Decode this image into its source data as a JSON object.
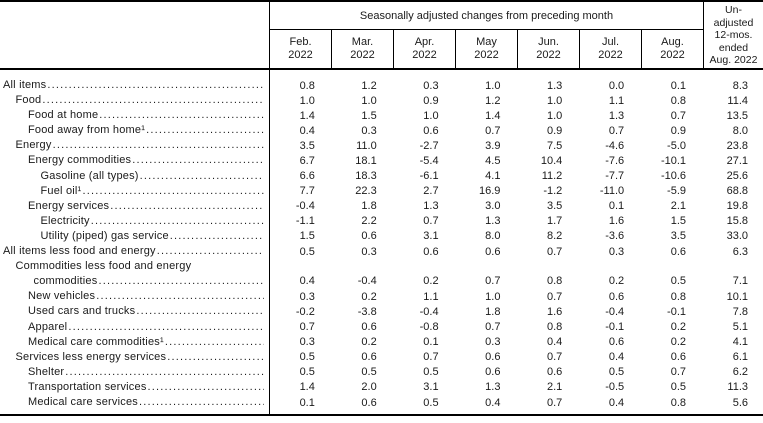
{
  "table": {
    "group_header": "Seasonally adjusted changes from preceding month",
    "unadjusted_header": "Un-\nadjusted\n12-mos.\nended\nAug. 2022",
    "months": [
      {
        "name": "Feb.",
        "year": "2022"
      },
      {
        "name": "Mar.",
        "year": "2022"
      },
      {
        "name": "Apr.",
        "year": "2022"
      },
      {
        "name": "May",
        "year": "2022"
      },
      {
        "name": "Jun.",
        "year": "2022"
      },
      {
        "name": "Jul.",
        "year": "2022"
      },
      {
        "name": "Aug.",
        "year": "2022"
      }
    ],
    "rows": [
      {
        "label": "All items",
        "indent": 0,
        "values": [
          "0.8",
          "1.2",
          "0.3",
          "1.0",
          "1.3",
          "0.0",
          "0.1",
          "8.3"
        ]
      },
      {
        "label": "Food",
        "indent": 1,
        "values": [
          "1.0",
          "1.0",
          "0.9",
          "1.2",
          "1.0",
          "1.1",
          "0.8",
          "11.4"
        ]
      },
      {
        "label": "Food at home",
        "indent": 2,
        "values": [
          "1.4",
          "1.5",
          "1.0",
          "1.4",
          "1.0",
          "1.3",
          "0.7",
          "13.5"
        ]
      },
      {
        "label": "Food away from home¹",
        "indent": 2,
        "values": [
          "0.4",
          "0.3",
          "0.6",
          "0.7",
          "0.9",
          "0.7",
          "0.9",
          "8.0"
        ]
      },
      {
        "label": "Energy",
        "indent": 1,
        "values": [
          "3.5",
          "11.0",
          "-2.7",
          "3.9",
          "7.5",
          "-4.6",
          "-5.0",
          "23.8"
        ]
      },
      {
        "label": "Energy commodities",
        "indent": 2,
        "values": [
          "6.7",
          "18.1",
          "-5.4",
          "4.5",
          "10.4",
          "-7.6",
          "-10.1",
          "27.1"
        ]
      },
      {
        "label": "Gasoline (all types)",
        "indent": 3,
        "values": [
          "6.6",
          "18.3",
          "-6.1",
          "4.1",
          "11.2",
          "-7.7",
          "-10.6",
          "25.6"
        ]
      },
      {
        "label": "Fuel oil¹",
        "indent": 3,
        "values": [
          "7.7",
          "22.3",
          "2.7",
          "16.9",
          "-1.2",
          "-11.0",
          "-5.9",
          "68.8"
        ]
      },
      {
        "label": "Energy services",
        "indent": 2,
        "values": [
          "-0.4",
          "1.8",
          "1.3",
          "3.0",
          "3.5",
          "0.1",
          "2.1",
          "19.8"
        ]
      },
      {
        "label": "Electricity",
        "indent": 3,
        "values": [
          "-1.1",
          "2.2",
          "0.7",
          "1.3",
          "1.7",
          "1.6",
          "1.5",
          "15.8"
        ]
      },
      {
        "label": "Utility (piped) gas service",
        "indent": 3,
        "values": [
          "1.5",
          "0.6",
          "3.1",
          "8.0",
          "8.2",
          "-3.6",
          "3.5",
          "33.0"
        ]
      },
      {
        "label": "All items less food and energy",
        "indent": 0,
        "values": [
          "0.5",
          "0.3",
          "0.6",
          "0.6",
          "0.7",
          "0.3",
          "0.6",
          "6.3"
        ]
      },
      {
        "label": "Commodities less food and energy",
        "label2": "commodities",
        "indent": 1,
        "values": [
          "0.4",
          "-0.4",
          "0.2",
          "0.7",
          "0.8",
          "0.2",
          "0.5",
          "7.1"
        ]
      },
      {
        "label": "New vehicles",
        "indent": 2,
        "values": [
          "0.3",
          "0.2",
          "1.1",
          "1.0",
          "0.7",
          "0.6",
          "0.8",
          "10.1"
        ]
      },
      {
        "label": "Used cars and trucks",
        "indent": 2,
        "values": [
          "-0.2",
          "-3.8",
          "-0.4",
          "1.8",
          "1.6",
          "-0.4",
          "-0.1",
          "7.8"
        ]
      },
      {
        "label": "Apparel",
        "indent": 2,
        "values": [
          "0.7",
          "0.6",
          "-0.8",
          "0.7",
          "0.8",
          "-0.1",
          "0.2",
          "5.1"
        ]
      },
      {
        "label": "Medical care commodities¹",
        "indent": 2,
        "values": [
          "0.3",
          "0.2",
          "0.1",
          "0.3",
          "0.4",
          "0.6",
          "0.2",
          "4.1"
        ]
      },
      {
        "label": "Services less energy services",
        "indent": 1,
        "values": [
          "0.5",
          "0.6",
          "0.7",
          "0.6",
          "0.7",
          "0.4",
          "0.6",
          "6.1"
        ]
      },
      {
        "label": "Shelter",
        "indent": 2,
        "values": [
          "0.5",
          "0.5",
          "0.5",
          "0.6",
          "0.6",
          "0.5",
          "0.7",
          "6.2"
        ]
      },
      {
        "label": "Transportation services",
        "indent": 2,
        "values": [
          "1.4",
          "2.0",
          "3.1",
          "1.3",
          "2.1",
          "-0.5",
          "0.5",
          "11.3"
        ]
      },
      {
        "label": "Medical care services",
        "indent": 2,
        "values": [
          "0.1",
          "0.6",
          "0.5",
          "0.4",
          "0.7",
          "0.4",
          "0.8",
          "5.6"
        ]
      }
    ]
  }
}
